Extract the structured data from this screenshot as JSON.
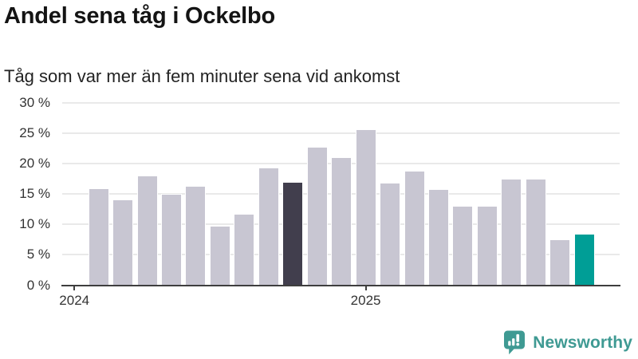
{
  "chart_data": {
    "type": "bar",
    "title": "Andel sena tåg i Ockelbo",
    "subtitle": "Tåg som var mer än fem minuter sena vid ankomst",
    "unit": "%",
    "ylim": [
      0,
      30
    ],
    "grid": true,
    "legend": false,
    "yticks": [
      {
        "value": 0,
        "label": "0 %"
      },
      {
        "value": 5,
        "label": "5 %"
      },
      {
        "value": 10,
        "label": "10 %"
      },
      {
        "value": 15,
        "label": "15 %"
      },
      {
        "value": 20,
        "label": "20 %"
      },
      {
        "value": 25,
        "label": "25 %"
      },
      {
        "value": 30,
        "label": "30 %"
      }
    ],
    "x_ticks": [
      {
        "slot": 0,
        "label": "2024"
      },
      {
        "slot": 12,
        "label": "2025"
      }
    ],
    "values": [
      null,
      15.8,
      14.0,
      17.9,
      15.0,
      16.2,
      9.7,
      11.6,
      19.2,
      16.9,
      22.7,
      20.9,
      25.6,
      16.8,
      18.7,
      15.7,
      13.0,
      13.0,
      17.4,
      17.4,
      7.5,
      8.4
    ],
    "highlights": {
      "dark_slot": 9,
      "teal_slot": 21
    },
    "colors": {
      "bar": "#c8c6d2",
      "dark": "#413e4d",
      "teal": "#009e96",
      "grid": "#e9e9e9",
      "axis": "#3e3e3e",
      "tick_label": "#333333",
      "background": "#ffffff"
    }
  },
  "footer": {
    "brand": "Newsworthy",
    "logo_color": "#3f9a93"
  }
}
